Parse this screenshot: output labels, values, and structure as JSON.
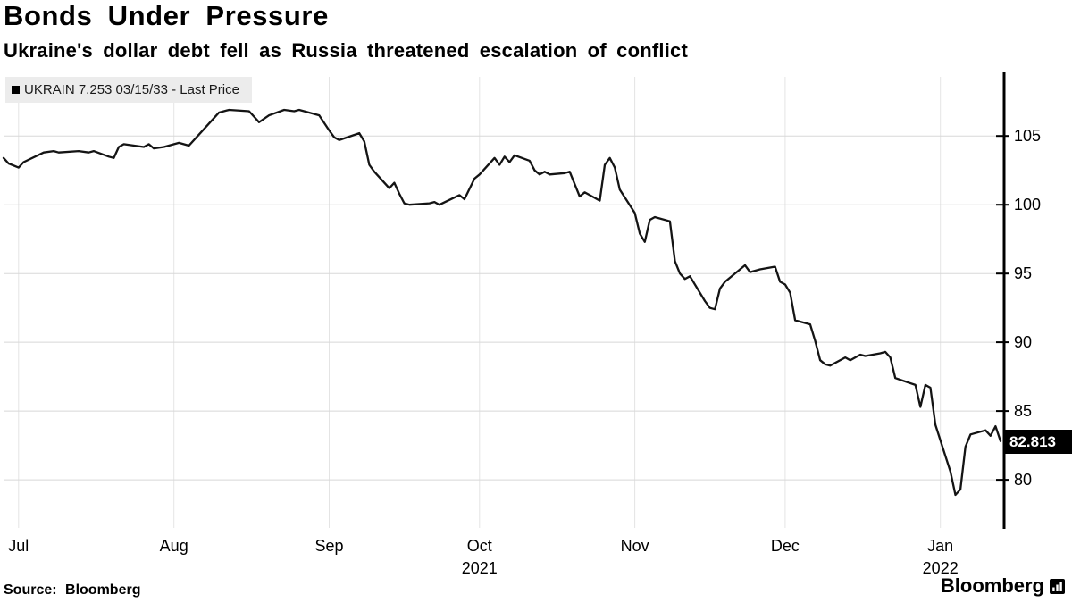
{
  "header": {
    "title": "Bonds Under Pressure",
    "subtitle": "Ukraine's dollar debt fell as Russia threatened escalation of conflict"
  },
  "legend": {
    "marker": "■",
    "label": "UKRAIN 7.253 03/15/33 - Last Price"
  },
  "footer": {
    "source": "Source: Bloomberg",
    "brand": "Bloomberg"
  },
  "colors": {
    "line": "#141414",
    "grid_h": "#d8d8d8",
    "grid_v": "#e4e4e4",
    "axis": "#000000",
    "legend_bg": "#ececec",
    "label_bg": "#000000",
    "label_text": "#ffffff"
  },
  "chart_data": {
    "type": "line",
    "title": "Bonds Under Pressure",
    "subtitle": "Ukraine's dollar debt fell as Russia threatened escalation of conflict",
    "series_name": "UKRAIN 7.253 03/15/33 - Last Price",
    "x_type": "date",
    "x_range": [
      "2021-06-28",
      "2022-01-13"
    ],
    "y_range": [
      76.5,
      109.3
    ],
    "y_ticks": [
      80,
      85,
      90,
      95,
      100,
      105
    ],
    "axis_side": "right",
    "grid": true,
    "legend_position": "top-left",
    "last_price": 82.813,
    "last_price_label": "82.813",
    "x_ticks": [
      {
        "date": "2021-07-01",
        "label": "Jul"
      },
      {
        "date": "2021-08-01",
        "label": "Aug"
      },
      {
        "date": "2021-09-01",
        "label": "Sep"
      },
      {
        "date": "2021-10-01",
        "label": "Oct"
      },
      {
        "date": "2021-11-01",
        "label": "Nov"
      },
      {
        "date": "2021-12-01",
        "label": "Dec"
      },
      {
        "date": "2022-01-01",
        "label": "Jan"
      }
    ],
    "year_labels": [
      {
        "date": "2021-10-01",
        "label": "2021"
      },
      {
        "date": "2022-01-01",
        "label": "2022"
      }
    ],
    "points": [
      [
        "2021-06-28",
        103.4
      ],
      [
        "2021-06-29",
        103.0
      ],
      [
        "2021-07-01",
        102.7
      ],
      [
        "2021-07-02",
        103.1
      ],
      [
        "2021-07-06",
        103.8
      ],
      [
        "2021-07-08",
        103.9
      ],
      [
        "2021-07-09",
        103.8
      ],
      [
        "2021-07-13",
        103.9
      ],
      [
        "2021-07-15",
        103.8
      ],
      [
        "2021-07-16",
        103.9
      ],
      [
        "2021-07-19",
        103.5
      ],
      [
        "2021-07-20",
        103.4
      ],
      [
        "2021-07-21",
        104.2
      ],
      [
        "2021-07-22",
        104.4
      ],
      [
        "2021-07-26",
        104.2
      ],
      [
        "2021-07-27",
        104.4
      ],
      [
        "2021-07-28",
        104.1
      ],
      [
        "2021-07-30",
        104.2
      ],
      [
        "2021-08-02",
        104.5
      ],
      [
        "2021-08-04",
        104.3
      ],
      [
        "2021-08-06",
        105.1
      ],
      [
        "2021-08-09",
        106.3
      ],
      [
        "2021-08-10",
        106.7
      ],
      [
        "2021-08-12",
        106.9
      ],
      [
        "2021-08-16",
        106.8
      ],
      [
        "2021-08-17",
        106.4
      ],
      [
        "2021-08-18",
        106.0
      ],
      [
        "2021-08-20",
        106.5
      ],
      [
        "2021-08-23",
        106.9
      ],
      [
        "2021-08-25",
        106.8
      ],
      [
        "2021-08-26",
        106.9
      ],
      [
        "2021-08-30",
        106.5
      ],
      [
        "2021-09-01",
        105.4
      ],
      [
        "2021-09-02",
        104.9
      ],
      [
        "2021-09-03",
        104.7
      ],
      [
        "2021-09-07",
        105.2
      ],
      [
        "2021-09-08",
        104.6
      ],
      [
        "2021-09-09",
        102.9
      ],
      [
        "2021-09-10",
        102.4
      ],
      [
        "2021-09-13",
        101.2
      ],
      [
        "2021-09-14",
        101.6
      ],
      [
        "2021-09-15",
        100.8
      ],
      [
        "2021-09-16",
        100.1
      ],
      [
        "2021-09-17",
        100.0
      ],
      [
        "2021-09-21",
        100.1
      ],
      [
        "2021-09-22",
        100.2
      ],
      [
        "2021-09-23",
        100.0
      ],
      [
        "2021-09-27",
        100.7
      ],
      [
        "2021-09-28",
        100.4
      ],
      [
        "2021-09-30",
        101.9
      ],
      [
        "2021-10-01",
        102.2
      ],
      [
        "2021-10-04",
        103.4
      ],
      [
        "2021-10-05",
        102.9
      ],
      [
        "2021-10-06",
        103.5
      ],
      [
        "2021-10-07",
        103.1
      ],
      [
        "2021-10-08",
        103.6
      ],
      [
        "2021-10-11",
        103.2
      ],
      [
        "2021-10-12",
        102.5
      ],
      [
        "2021-10-13",
        102.2
      ],
      [
        "2021-10-14",
        102.4
      ],
      [
        "2021-10-15",
        102.2
      ],
      [
        "2021-10-18",
        102.3
      ],
      [
        "2021-10-19",
        102.4
      ],
      [
        "2021-10-20",
        101.5
      ],
      [
        "2021-10-21",
        100.6
      ],
      [
        "2021-10-22",
        100.9
      ],
      [
        "2021-10-25",
        100.3
      ],
      [
        "2021-10-26",
        102.9
      ],
      [
        "2021-10-27",
        103.4
      ],
      [
        "2021-10-28",
        102.7
      ],
      [
        "2021-10-29",
        101.1
      ],
      [
        "2021-11-01",
        99.4
      ],
      [
        "2021-11-02",
        97.9
      ],
      [
        "2021-11-03",
        97.3
      ],
      [
        "2021-11-04",
        98.9
      ],
      [
        "2021-11-05",
        99.1
      ],
      [
        "2021-11-08",
        98.8
      ],
      [
        "2021-11-09",
        95.9
      ],
      [
        "2021-11-10",
        95.0
      ],
      [
        "2021-11-11",
        94.6
      ],
      [
        "2021-11-12",
        94.8
      ],
      [
        "2021-11-15",
        93.0
      ],
      [
        "2021-11-16",
        92.5
      ],
      [
        "2021-11-17",
        92.4
      ],
      [
        "2021-11-18",
        93.9
      ],
      [
        "2021-11-19",
        94.4
      ],
      [
        "2021-11-22",
        95.3
      ],
      [
        "2021-11-23",
        95.6
      ],
      [
        "2021-11-24",
        95.1
      ],
      [
        "2021-11-26",
        95.3
      ],
      [
        "2021-11-29",
        95.5
      ],
      [
        "2021-11-30",
        94.4
      ],
      [
        "2021-12-01",
        94.2
      ],
      [
        "2021-12-02",
        93.6
      ],
      [
        "2021-12-03",
        91.6
      ],
      [
        "2021-12-06",
        91.3
      ],
      [
        "2021-12-07",
        90.1
      ],
      [
        "2021-12-08",
        88.7
      ],
      [
        "2021-12-09",
        88.4
      ],
      [
        "2021-12-10",
        88.3
      ],
      [
        "2021-12-13",
        88.9
      ],
      [
        "2021-12-14",
        88.7
      ],
      [
        "2021-12-15",
        88.9
      ],
      [
        "2021-12-16",
        89.1
      ],
      [
        "2021-12-17",
        89.0
      ],
      [
        "2021-12-20",
        89.2
      ],
      [
        "2021-12-21",
        89.3
      ],
      [
        "2021-12-22",
        88.9
      ],
      [
        "2021-12-23",
        87.4
      ],
      [
        "2021-12-27",
        86.9
      ],
      [
        "2021-12-28",
        85.3
      ],
      [
        "2021-12-29",
        86.9
      ],
      [
        "2021-12-30",
        86.7
      ],
      [
        "2021-12-31",
        84.0
      ],
      [
        "2022-01-03",
        80.6
      ],
      [
        "2022-01-04",
        78.9
      ],
      [
        "2022-01-05",
        79.3
      ],
      [
        "2022-01-06",
        82.4
      ],
      [
        "2022-01-07",
        83.3
      ],
      [
        "2022-01-10",
        83.6
      ],
      [
        "2022-01-11",
        83.2
      ],
      [
        "2022-01-12",
        83.9
      ],
      [
        "2022-01-13",
        82.813
      ]
    ]
  }
}
